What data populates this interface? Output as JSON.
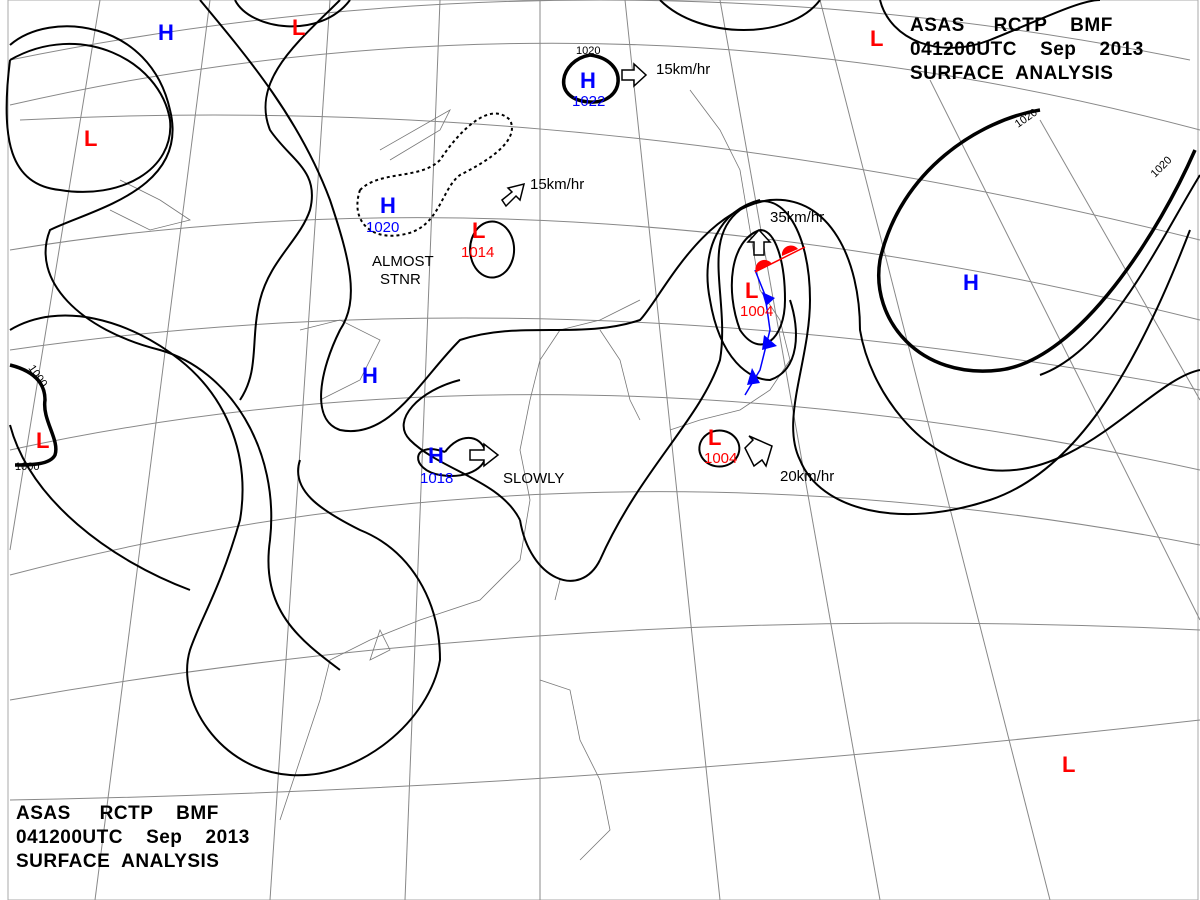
{
  "header": {
    "line1": "ASAS     RCTP    BMF",
    "line2": "041200UTC    Sep    2013",
    "line3": "SURFACE  ANALYSIS"
  },
  "colors": {
    "high": "#0000ff",
    "low": "#ff0000",
    "isobar": "#000000",
    "cold_front": "#0000ff",
    "warm_front": "#ff0000"
  },
  "pressure_centers": [
    {
      "type": "H",
      "label": "H",
      "pressure": ""
    },
    {
      "type": "L",
      "label": "L",
      "pressure": ""
    },
    {
      "type": "L",
      "label": "L",
      "pressure": ""
    },
    {
      "type": "H",
      "label": "H",
      "pressure": "1022"
    },
    {
      "type": "L",
      "label": "L",
      "pressure": ""
    },
    {
      "type": "H",
      "label": "H",
      "pressure": "1020"
    },
    {
      "type": "L",
      "label": "L",
      "pressure": "1014"
    },
    {
      "type": "L",
      "label": "L",
      "pressure": "1004"
    },
    {
      "type": "H",
      "label": "H",
      "pressure": ""
    },
    {
      "type": "H",
      "label": "H",
      "pressure": ""
    },
    {
      "type": "L",
      "label": "L",
      "pressure": ""
    },
    {
      "type": "H",
      "label": "H",
      "pressure": "1018"
    },
    {
      "type": "L",
      "label": "L",
      "pressure": "1004"
    },
    {
      "type": "L",
      "label": "L",
      "pressure": ""
    }
  ],
  "motions": {
    "m1": "15km/hr",
    "m2": "15km/hr",
    "m3": "35km/hr",
    "m4": "20km/hr",
    "m5": "SLOWLY",
    "stnr1": "ALMOST",
    "stnr2": "STNR"
  },
  "isobar_labels": {
    "a": "1020",
    "b": "1020",
    "c": "1020",
    "d": "1000",
    "e": "1000"
  }
}
